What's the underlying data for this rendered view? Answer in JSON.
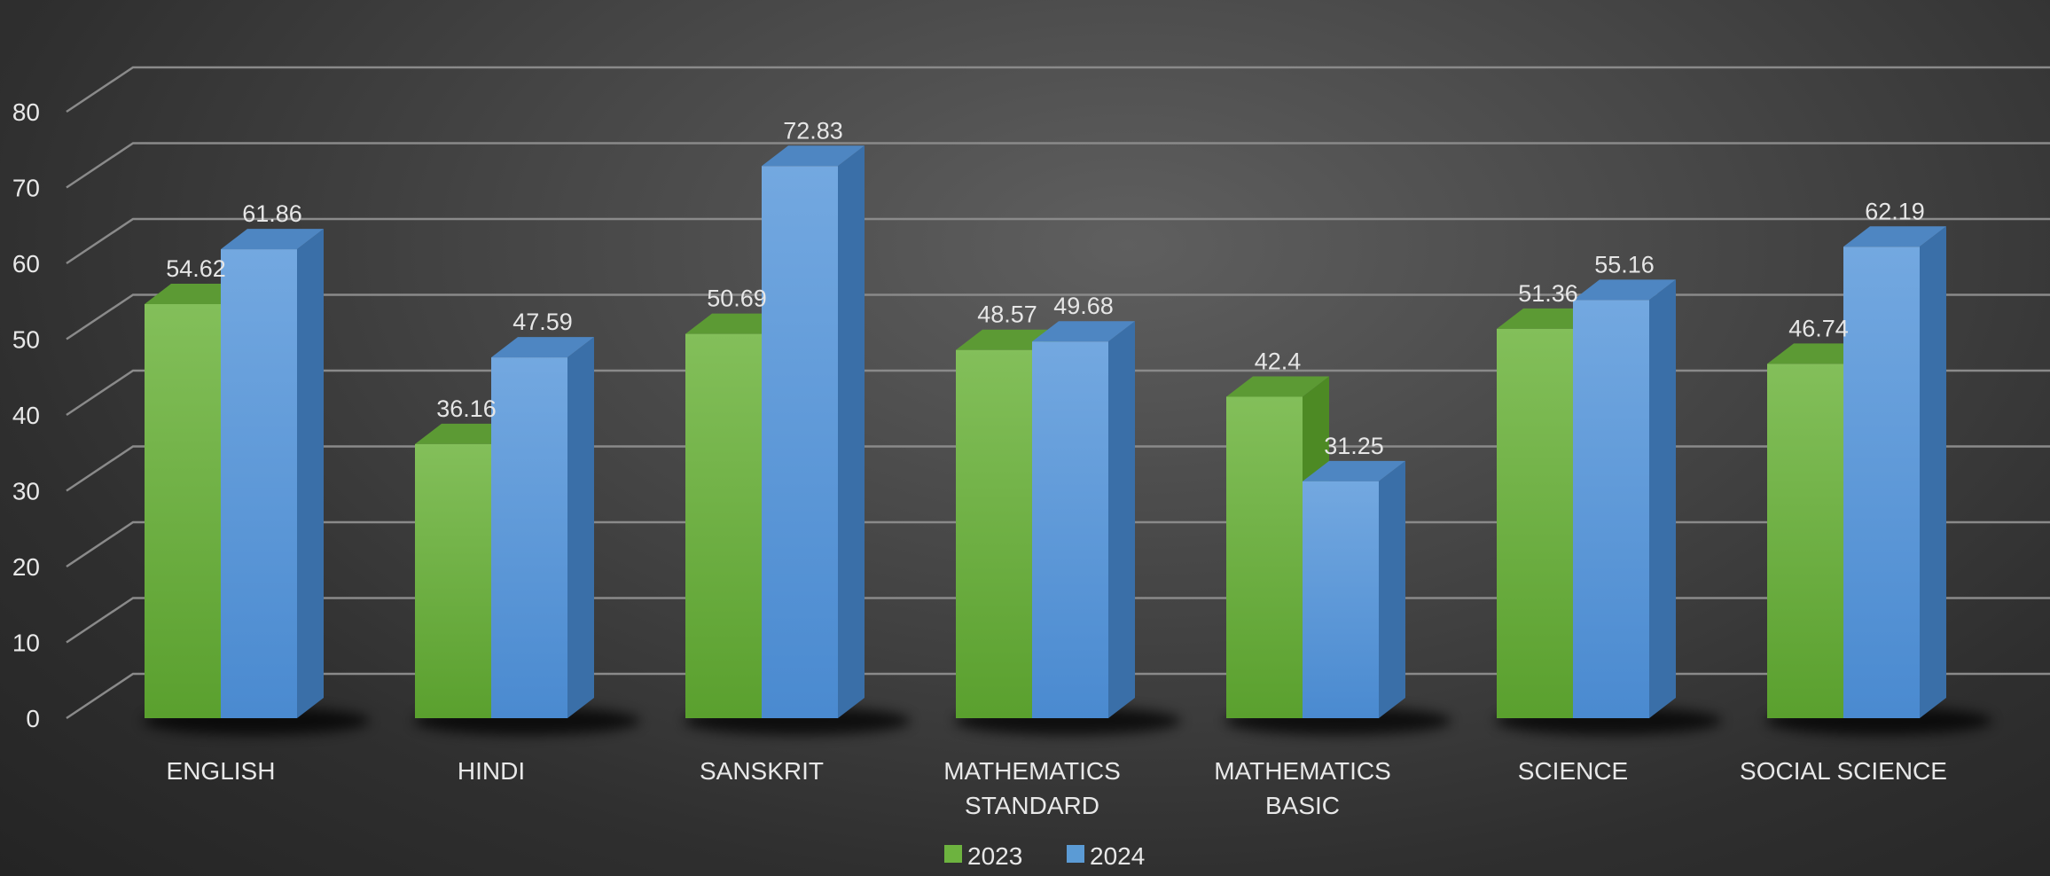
{
  "chart_data": {
    "type": "bar",
    "style": "3d-clustered-column",
    "title": "",
    "xlabel": "",
    "ylabel": "",
    "categories": [
      [
        "ENGLISH"
      ],
      [
        "HINDI"
      ],
      [
        "SANSKRIT"
      ],
      [
        "MATHEMATICS",
        "STANDARD"
      ],
      [
        "MATHEMATICS",
        "BASIC"
      ],
      [
        "SCIENCE"
      ],
      [
        "SOCIAL SCIENCE"
      ]
    ],
    "series": [
      {
        "name": "2023",
        "values": [
          54.62,
          36.16,
          50.69,
          48.57,
          42.4,
          51.36,
          46.74
        ],
        "color": "#6db33f"
      },
      {
        "name": "2024",
        "values": [
          61.86,
          47.59,
          72.83,
          49.68,
          31.25,
          55.16,
          62.19
        ],
        "color": "#5b9bd5"
      }
    ],
    "ylim": [
      0,
      80
    ],
    "yticks": [
      0,
      10,
      20,
      30,
      40,
      50,
      60,
      70,
      80
    ],
    "grid": true,
    "legend": "bottom",
    "background": "#3a3a3a"
  }
}
